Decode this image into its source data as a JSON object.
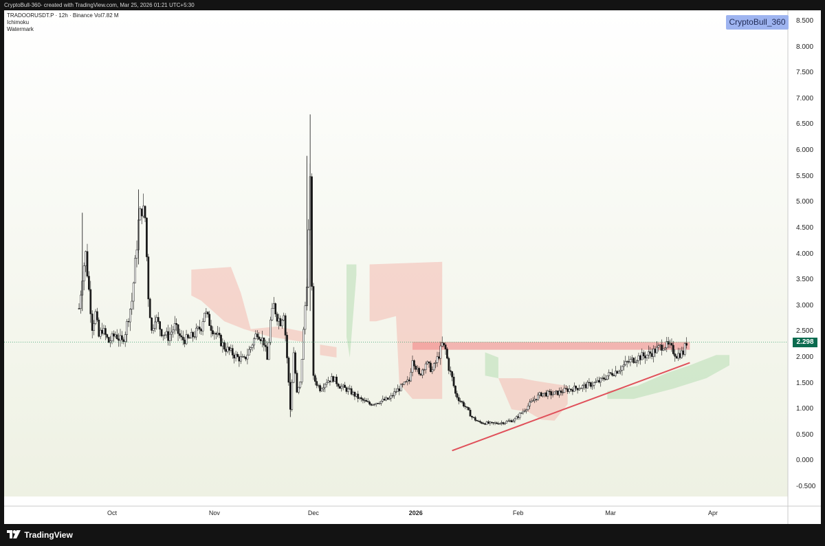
{
  "header": {
    "caption": "CryptoBull-360- created with TradingView.com, Mar 25, 2026 01:21 UTC+5:30"
  },
  "legend": {
    "symbol_line": "TRADOORUSDT.P · 12h · Binance  Vol7.82 M",
    "indicator_1": "Ichimoku",
    "indicator_2": "Watermark"
  },
  "watermark": "CryptoBull_360",
  "last_price": "2.298",
  "footer": {
    "brand": "TradingView",
    "brand_icon": "tradingview-logo-icon"
  },
  "colors": {
    "candle_up": "#ffffff",
    "candle_down": "#1a1a1a",
    "cloud_bear": "#f4b9b1",
    "cloud_bull": "#b7ddb3",
    "trendline": "#e0505a",
    "resistance_zone": "#f28a8a",
    "price_tag": "#0b6b4f"
  },
  "chart_data": {
    "type": "candlestick",
    "symbol": "TRADOORUSDT.P",
    "interval": "12h",
    "exchange": "Binance",
    "y_ticks": [
      "8.500",
      "8.000",
      "7.500",
      "7.000",
      "6.500",
      "6.000",
      "5.500",
      "5.000",
      "4.500",
      "4.000",
      "3.500",
      "3.000",
      "2.500",
      "2.000",
      "1.500",
      "1.000",
      "0.500",
      "0.000",
      "-0.500"
    ],
    "ylim": [
      -0.85,
      8.8
    ],
    "x_ticks": [
      {
        "label": "Oct",
        "date": "2025-10-01",
        "bold": false
      },
      {
        "label": "Nov",
        "date": "2025-11-01",
        "bold": false
      },
      {
        "label": "Dec",
        "date": "2025-12-01",
        "bold": false
      },
      {
        "label": "2026",
        "date": "2026-01-01",
        "bold": true
      },
      {
        "label": "Feb",
        "date": "2026-02-01",
        "bold": false
      },
      {
        "label": "Mar",
        "date": "2026-03-01",
        "bold": false
      },
      {
        "label": "Apr",
        "date": "2026-04-01",
        "bold": false
      }
    ],
    "x_range": [
      "2025-09-10",
      "2026-04-28"
    ],
    "close_path": [
      [
        "2025-09-21",
        2.95
      ],
      [
        "2025-09-22",
        3.6
      ],
      [
        "2025-09-23",
        4.0
      ],
      [
        "2025-09-24",
        3.3
      ],
      [
        "2025-09-25",
        2.6
      ],
      [
        "2025-09-26",
        2.85
      ],
      [
        "2025-09-27",
        2.4
      ],
      [
        "2025-09-28",
        2.55
      ],
      [
        "2025-09-30",
        2.3
      ],
      [
        "2025-10-02",
        2.45
      ],
      [
        "2025-10-04",
        2.3
      ],
      [
        "2025-10-05",
        2.5
      ],
      [
        "2025-10-06",
        2.8
      ],
      [
        "2025-10-07",
        3.1
      ],
      [
        "2025-10-08",
        3.8
      ],
      [
        "2025-10-09",
        4.6
      ],
      [
        "2025-10-10",
        4.9
      ],
      [
        "2025-10-11",
        4.7
      ],
      [
        "2025-10-12",
        3.2
      ],
      [
        "2025-10-13",
        2.5
      ],
      [
        "2025-10-14",
        2.8
      ],
      [
        "2025-10-16",
        2.5
      ],
      [
        "2025-10-18",
        2.4
      ],
      [
        "2025-10-20",
        2.6
      ],
      [
        "2025-10-22",
        2.35
      ],
      [
        "2025-10-24",
        2.35
      ],
      [
        "2025-10-26",
        2.45
      ],
      [
        "2025-10-28",
        2.6
      ],
      [
        "2025-10-29",
        2.9
      ],
      [
        "2025-10-31",
        2.6
      ],
      [
        "2025-11-02",
        2.4
      ],
      [
        "2025-11-04",
        2.2
      ],
      [
        "2025-11-06",
        2.1
      ],
      [
        "2025-11-08",
        2.0
      ],
      [
        "2025-11-10",
        1.95
      ],
      [
        "2025-11-12",
        2.2
      ],
      [
        "2025-11-14",
        2.5
      ],
      [
        "2025-11-16",
        2.3
      ],
      [
        "2025-11-17",
        1.95
      ],
      [
        "2025-11-18",
        2.7
      ],
      [
        "2025-11-19",
        3.0
      ],
      [
        "2025-11-20",
        2.8
      ],
      [
        "2025-11-21",
        2.7
      ],
      [
        "2025-11-22",
        2.9
      ],
      [
        "2025-11-23",
        2.0
      ],
      [
        "2025-11-24",
        1.0
      ],
      [
        "2025-11-25",
        2.1
      ],
      [
        "2025-11-26",
        1.3
      ],
      [
        "2025-11-27",
        1.5
      ],
      [
        "2025-11-28",
        2.5
      ],
      [
        "2025-11-29",
        3.5
      ],
      [
        "2025-11-30",
        5.3
      ],
      [
        "2025-12-01",
        1.6
      ],
      [
        "2025-12-03",
        1.4
      ],
      [
        "2025-12-05",
        1.55
      ],
      [
        "2025-12-07",
        1.6
      ],
      [
        "2025-12-09",
        1.45
      ],
      [
        "2025-12-12",
        1.35
      ],
      [
        "2025-12-15",
        1.2
      ],
      [
        "2025-12-18",
        1.1
      ],
      [
        "2025-12-21",
        1.15
      ],
      [
        "2025-12-24",
        1.2
      ],
      [
        "2025-12-26",
        1.35
      ],
      [
        "2025-12-28",
        1.45
      ],
      [
        "2025-12-30",
        1.55
      ],
      [
        "2025-12-31",
        2.0
      ],
      [
        "2026-01-02",
        1.65
      ],
      [
        "2026-01-04",
        1.9
      ],
      [
        "2026-01-06",
        1.75
      ],
      [
        "2026-01-08",
        2.05
      ],
      [
        "2026-01-09",
        2.25
      ],
      [
        "2026-01-10",
        2.15
      ],
      [
        "2026-01-11",
        1.8
      ],
      [
        "2026-01-12",
        1.6
      ],
      [
        "2026-01-13",
        1.3
      ],
      [
        "2026-01-14",
        1.2
      ],
      [
        "2026-01-16",
        1.05
      ],
      [
        "2026-01-18",
        0.85
      ],
      [
        "2026-01-20",
        0.75
      ],
      [
        "2026-01-24",
        0.72
      ],
      [
        "2026-01-28",
        0.75
      ],
      [
        "2026-01-31",
        0.8
      ],
      [
        "2026-02-03",
        1.0
      ],
      [
        "2026-02-06",
        1.2
      ],
      [
        "2026-02-08",
        1.3
      ],
      [
        "2026-02-12",
        1.3
      ],
      [
        "2026-02-16",
        1.38
      ],
      [
        "2026-02-20",
        1.43
      ],
      [
        "2026-02-24",
        1.5
      ],
      [
        "2026-02-26",
        1.55
      ],
      [
        "2026-02-28",
        1.65
      ],
      [
        "2026-03-03",
        1.75
      ],
      [
        "2026-03-06",
        1.9
      ],
      [
        "2026-03-09",
        2.0
      ],
      [
        "2026-03-12",
        2.05
      ],
      [
        "2026-03-15",
        2.15
      ],
      [
        "2026-03-17",
        2.25
      ],
      [
        "2026-03-19",
        2.2
      ],
      [
        "2026-03-21",
        2.05
      ],
      [
        "2026-03-23",
        2.1
      ],
      [
        "2026-03-24",
        2.3
      ]
    ],
    "spikes": [
      {
        "date": "2025-09-22",
        "high": 4.8,
        "low": 2.9
      },
      {
        "date": "2025-10-09",
        "high": 5.25,
        "low": 3.8
      },
      {
        "date": "2025-11-24",
        "high": 1.7,
        "low": 0.85
      },
      {
        "date": "2025-11-30",
        "high": 6.7,
        "low": 2.9
      },
      {
        "date": "2025-11-29",
        "high": 5.9,
        "low": 3.0
      }
    ],
    "resistance_zone": {
      "start": "2025-12-31",
      "end": "2026-03-25",
      "low": 2.15,
      "high": 2.3
    },
    "trendline": {
      "start": {
        "date": "2026-01-12",
        "value": 0.2
      },
      "end": {
        "date": "2026-03-25",
        "value": 1.9
      }
    },
    "last_price_line": 2.298,
    "cloud_bear": [
      {
        "points": [
          [
            "2025-10-25",
            3.7
          ],
          [
            "2025-11-06",
            3.75
          ],
          [
            "2025-11-09",
            3.25
          ],
          [
            "2025-11-12",
            2.55
          ],
          [
            "2025-11-20",
            2.6
          ],
          [
            "2025-11-28",
            2.5
          ],
          [
            "2025-11-28",
            2.3
          ],
          [
            "2025-11-18",
            2.4
          ],
          [
            "2025-11-10",
            2.55
          ],
          [
            "2025-11-04",
            2.7
          ],
          [
            "2025-10-28",
            3.1
          ],
          [
            "2025-10-25",
            3.2
          ]
        ]
      },
      {
        "points": [
          [
            "2025-12-18",
            3.8
          ],
          [
            "2026-01-09",
            3.85
          ],
          [
            "2026-01-09",
            1.2
          ],
          [
            "2025-12-31",
            1.2
          ],
          [
            "2025-12-27",
            1.5
          ],
          [
            "2025-12-26",
            2.8
          ],
          [
            "2025-12-20",
            2.7
          ],
          [
            "2025-12-18",
            2.7
          ]
        ]
      },
      {
        "points": [
          [
            "2026-01-26",
            1.6
          ],
          [
            "2026-02-02",
            1.6
          ],
          [
            "2026-02-06",
            1.55
          ],
          [
            "2026-02-16",
            1.45
          ],
          [
            "2026-02-16",
            1.1
          ],
          [
            "2026-02-12",
            0.78
          ],
          [
            "2026-02-08",
            0.8
          ],
          [
            "2026-02-04",
            0.95
          ],
          [
            "2026-01-30",
            1.0
          ]
        ]
      },
      {
        "points": [
          [
            "2025-12-03",
            2.25
          ],
          [
            "2025-12-08",
            2.2
          ],
          [
            "2025-12-08",
            2.0
          ],
          [
            "2025-12-03",
            2.05
          ]
        ]
      }
    ],
    "cloud_bull": [
      {
        "points": [
          [
            "2025-12-11",
            3.8
          ],
          [
            "2025-12-14",
            3.8
          ],
          [
            "2025-12-14",
            3.6
          ],
          [
            "2025-12-12",
            2.0
          ],
          [
            "2025-12-11",
            2.4
          ]
        ]
      },
      {
        "points": [
          [
            "2026-01-22",
            2.1
          ],
          [
            "2026-01-26",
            2.0
          ],
          [
            "2026-01-26",
            1.6
          ],
          [
            "2026-01-22",
            1.65
          ]
        ]
      },
      {
        "points": [
          [
            "2026-02-28",
            1.35
          ],
          [
            "2026-03-09",
            1.45
          ],
          [
            "2026-03-18",
            1.7
          ],
          [
            "2026-03-25",
            1.85
          ],
          [
            "2026-04-02",
            2.05
          ],
          [
            "2026-04-06",
            2.05
          ],
          [
            "2026-04-06",
            1.85
          ],
          [
            "2026-03-30",
            1.6
          ],
          [
            "2026-03-20",
            1.4
          ],
          [
            "2026-03-08",
            1.2
          ],
          [
            "2026-02-28",
            1.2
          ]
        ]
      }
    ]
  }
}
